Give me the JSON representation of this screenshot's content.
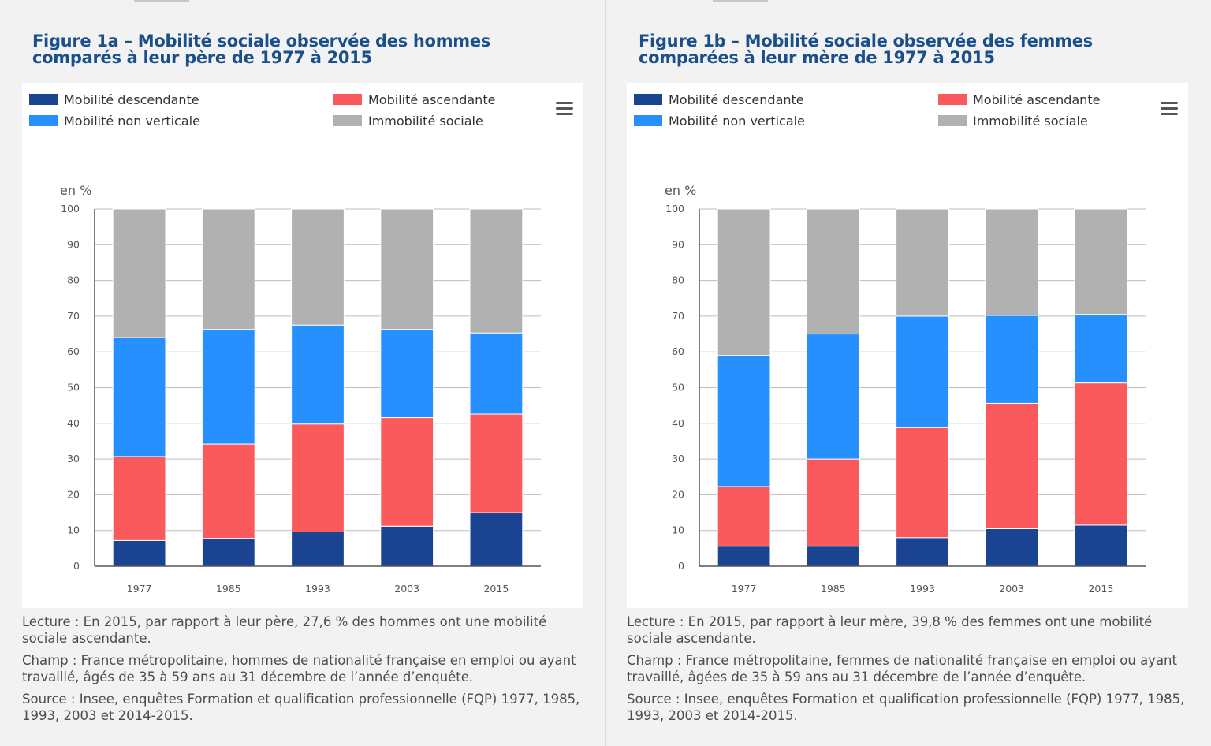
{
  "panels": [
    {
      "title": "Figure 1a – Mobilité sociale observée des hommes comparés à leur père de 1977 à 2015",
      "lecture": "Lecture : En 2015, par rapport à leur père, 27,6 % des hommes ont une mobilité sociale ascendante.",
      "champ": "Champ : France métropolitaine, hommes de nationalité française en emploi ou ayant travaillé, âgés de 35 à 59 ans au 31 décembre de l’année d’enquête.",
      "source": "Source : Insee, enquêtes Formation et qualification professionnelle (FQP) 1977, 1985, 1993, 2003 et 2014-2015."
    },
    {
      "title": "Figure 1b – Mobilité sociale observée des femmes comparées à leur mère de 1977 à 2015",
      "lecture": "Lecture : En 2015, par rapport à leur mère, 39,8 % des femmes ont une mobilité sociale ascendante.",
      "champ": "Champ : France métropolitaine, femmes de nationalité française en emploi ou ayant travaillé, âgées de 35 à 59 ans au 31 décembre de l’année d’enquête.",
      "source": "Source : Insee, enquêtes Formation et qualification professionnelle (FQP) 1977, 1985, 1993, 2003 et 2014-2015."
    }
  ],
  "chart_data": [
    {
      "type": "bar",
      "stacked": true,
      "ylabel": "en %",
      "ylim": [
        0,
        100
      ],
      "yticks": [
        0,
        10,
        20,
        30,
        40,
        50,
        60,
        70,
        80,
        90,
        100
      ],
      "grid": true,
      "legend_position": "top",
      "categories": [
        "1977",
        "1985",
        "1993",
        "2003",
        "2015"
      ],
      "series": [
        {
          "name": "Mobilité descendante",
          "color": "#1a4492",
          "values": [
            7.2,
            7.8,
            9.6,
            11.2,
            15.0
          ]
        },
        {
          "name": "Mobilité ascendante",
          "color": "#fb5a5c",
          "values": [
            23.5,
            26.4,
            30.2,
            30.4,
            27.6
          ]
        },
        {
          "name": "Mobilité non verticale",
          "color": "#2690ff",
          "values": [
            33.3,
            32.1,
            27.7,
            24.7,
            22.7
          ]
        },
        {
          "name": "Immobilité sociale",
          "color": "#b1b1b1",
          "values": [
            36.0,
            33.7,
            32.5,
            33.7,
            34.7
          ]
        }
      ]
    },
    {
      "type": "bar",
      "stacked": true,
      "ylabel": "en %",
      "ylim": [
        0,
        100
      ],
      "yticks": [
        0,
        10,
        20,
        30,
        40,
        50,
        60,
        70,
        80,
        90,
        100
      ],
      "grid": true,
      "legend_position": "top",
      "categories": [
        "1977",
        "1985",
        "1993",
        "2003",
        "2015"
      ],
      "series": [
        {
          "name": "Mobilité descendante",
          "color": "#1a4492",
          "values": [
            5.6,
            5.6,
            8.0,
            10.5,
            11.5
          ]
        },
        {
          "name": "Mobilité ascendante",
          "color": "#fb5a5c",
          "values": [
            16.7,
            24.4,
            30.8,
            35.1,
            39.8
          ]
        },
        {
          "name": "Mobilité non verticale",
          "color": "#2690ff",
          "values": [
            36.7,
            35.0,
            31.2,
            24.6,
            19.2
          ]
        },
        {
          "name": "Immobilité sociale",
          "color": "#b1b1b1",
          "values": [
            41.0,
            35.0,
            30.0,
            29.8,
            29.5
          ]
        }
      ]
    }
  ],
  "icons": {
    "menu": "hamburger-menu-icon"
  }
}
